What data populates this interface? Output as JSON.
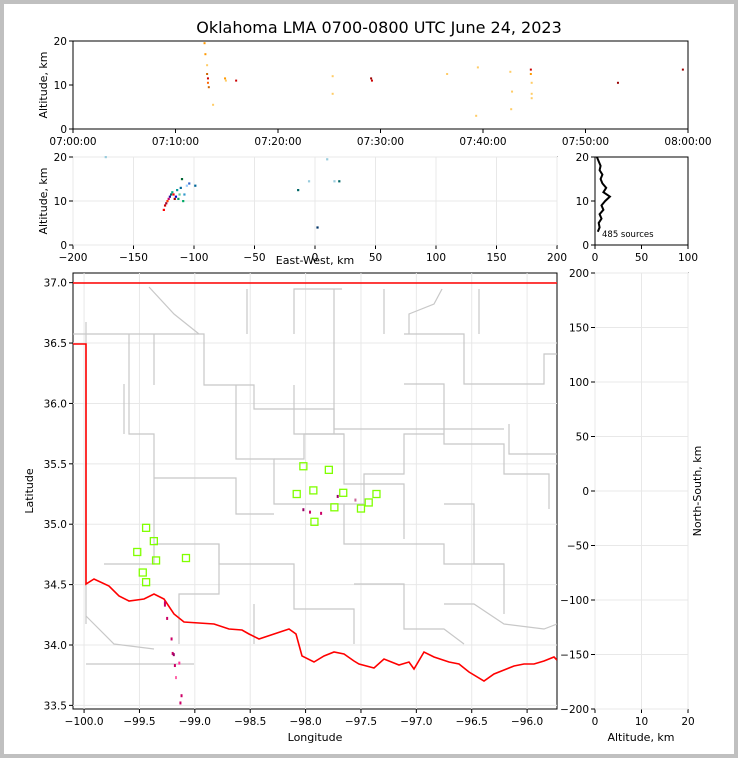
{
  "title": "Oklahoma LMA 0700-0800 UTC June 24, 2023",
  "colors": {
    "frame": "#c0c0c0",
    "state_line": "#ff0000",
    "county_line": "#c8c8c8",
    "station": "#80ff00",
    "grid": "#e8e8e8"
  },
  "chart_data": [
    {
      "id": "time_height",
      "type": "scatter",
      "ylabel": "Altitude, km",
      "ylim": [
        0,
        20
      ],
      "yticks": [
        "0",
        "10",
        "20"
      ],
      "xlim": [
        "07:00:00",
        "08:00:00"
      ],
      "xticks": [
        "07:00:00",
        "07:10:00",
        "07:20:00",
        "07:30:00",
        "07:40:00",
        "07:50:00",
        "08:00:00"
      ],
      "points": [
        {
          "t": "07:12:50",
          "alt": 19.5,
          "color": "#ff9900"
        },
        {
          "t": "07:12:55",
          "alt": 17.0,
          "color": "#ff9900"
        },
        {
          "t": "07:13:05",
          "alt": 14.5,
          "color": "#ffcc66"
        },
        {
          "t": "07:13:05",
          "alt": 12.5,
          "color": "#cc6600"
        },
        {
          "t": "07:13:10",
          "alt": 11.5,
          "color": "#cc0000"
        },
        {
          "t": "07:13:10",
          "alt": 10.5,
          "color": "#ff6600"
        },
        {
          "t": "07:13:15",
          "alt": 9.5,
          "color": "#cc6600"
        },
        {
          "t": "07:13:40",
          "alt": 5.5,
          "color": "#ffcc66"
        },
        {
          "t": "07:14:50",
          "alt": 11.5,
          "color": "#ff9900"
        },
        {
          "t": "07:14:55",
          "alt": 11.0,
          "color": "#ffcc66"
        },
        {
          "t": "07:15:55",
          "alt": 11.0,
          "color": "#cc0000"
        },
        {
          "t": "07:25:20",
          "alt": 12.0,
          "color": "#ffcc66"
        },
        {
          "t": "07:25:20",
          "alt": 8.0,
          "color": "#ffcc66"
        },
        {
          "t": "07:29:05",
          "alt": 11.5,
          "color": "#990000"
        },
        {
          "t": "07:29:10",
          "alt": 11.0,
          "color": "#cc0000"
        },
        {
          "t": "07:36:30",
          "alt": 12.5,
          "color": "#ffcc66"
        },
        {
          "t": "07:39:30",
          "alt": 14.0,
          "color": "#ffcc66"
        },
        {
          "t": "07:39:20",
          "alt": 3.0,
          "color": "#ffcc66"
        },
        {
          "t": "07:42:40",
          "alt": 13.0,
          "color": "#ffcc66"
        },
        {
          "t": "07:42:50",
          "alt": 8.5,
          "color": "#ffcc66"
        },
        {
          "t": "07:42:45",
          "alt": 4.5,
          "color": "#ffcc66"
        },
        {
          "t": "07:44:40",
          "alt": 13.5,
          "color": "#cc0000"
        },
        {
          "t": "07:44:40",
          "alt": 12.5,
          "color": "#ff9900"
        },
        {
          "t": "07:44:45",
          "alt": 10.5,
          "color": "#ffcc66"
        },
        {
          "t": "07:44:45",
          "alt": 8.0,
          "color": "#ffcc66"
        },
        {
          "t": "07:44:45",
          "alt": 7.0,
          "color": "#ffcc66"
        },
        {
          "t": "07:53:10",
          "alt": 10.5,
          "color": "#990000"
        },
        {
          "t": "07:59:30",
          "alt": 13.5,
          "color": "#990000"
        }
      ]
    },
    {
      "id": "ew_height",
      "type": "scatter",
      "xlabel": "East-West, km",
      "ylabel": "Altitude, km",
      "xlim": [
        -200,
        200
      ],
      "ylim": [
        0,
        20
      ],
      "xticks": [
        "−200",
        "−150",
        "−100",
        "−50",
        "0",
        "50",
        "100",
        "150",
        "200"
      ],
      "yticks": [
        "0",
        "10",
        "20"
      ],
      "points": [
        {
          "x": -125,
          "y": 8,
          "color": "#ff0000"
        },
        {
          "x": -124,
          "y": 9,
          "color": "#cc0000"
        },
        {
          "x": -123,
          "y": 9.5,
          "color": "#990033"
        },
        {
          "x": -122,
          "y": 10,
          "color": "#ff3300"
        },
        {
          "x": -121,
          "y": 10.5,
          "color": "#cc0066"
        },
        {
          "x": -120,
          "y": 11,
          "color": "#330099"
        },
        {
          "x": -119,
          "y": 11.5,
          "color": "#006666"
        },
        {
          "x": -118,
          "y": 12,
          "color": "#00aa88"
        },
        {
          "x": -117,
          "y": 11.5,
          "color": "#ff0000"
        },
        {
          "x": -116,
          "y": 10.5,
          "color": "#990000"
        },
        {
          "x": -115,
          "y": 11,
          "color": "#0000cc"
        },
        {
          "x": -114,
          "y": 12.5,
          "color": "#009999"
        },
        {
          "x": -113,
          "y": 10.5,
          "color": "#009966"
        },
        {
          "x": -112,
          "y": 11.5,
          "color": "#66cc99"
        },
        {
          "x": -111,
          "y": 13,
          "color": "#006699"
        },
        {
          "x": -110,
          "y": 15,
          "color": "#006633"
        },
        {
          "x": -109,
          "y": 10,
          "color": "#00aa66"
        },
        {
          "x": -108,
          "y": 11.5,
          "color": "#3399cc"
        },
        {
          "x": -106,
          "y": 13.5,
          "color": "#99ccff"
        },
        {
          "x": -104,
          "y": 14,
          "color": "#3366cc"
        },
        {
          "x": -99,
          "y": 13.5,
          "color": "#006699"
        },
        {
          "x": -14,
          "y": 12.5,
          "color": "#006666"
        },
        {
          "x": -5,
          "y": 14.5,
          "color": "#99ccdd"
        },
        {
          "x": 2,
          "y": 4,
          "color": "#003366"
        },
        {
          "x": 16,
          "y": 14.5,
          "color": "#99ccdd"
        },
        {
          "x": 20,
          "y": 14.5,
          "color": "#006666"
        },
        {
          "x": -173,
          "y": 20,
          "color": "#99ccdd"
        },
        {
          "x": 10,
          "y": 19.5,
          "color": "#99ccdd"
        }
      ]
    },
    {
      "id": "alt_hist",
      "type": "line",
      "xlim": [
        0,
        100
      ],
      "ylim": [
        0,
        20
      ],
      "xticks": [
        "0",
        "50",
        "100"
      ],
      "yticks": [
        "0",
        "10",
        "20"
      ],
      "annotation": "485 sources",
      "profile": [
        {
          "alt": 3,
          "count": 3
        },
        {
          "alt": 4,
          "count": 5
        },
        {
          "alt": 5,
          "count": 4
        },
        {
          "alt": 6,
          "count": 7
        },
        {
          "alt": 7,
          "count": 5
        },
        {
          "alt": 8,
          "count": 9
        },
        {
          "alt": 9,
          "count": 7
        },
        {
          "alt": 10,
          "count": 11
        },
        {
          "alt": 11,
          "count": 16
        },
        {
          "alt": 12,
          "count": 9
        },
        {
          "alt": 13,
          "count": 12
        },
        {
          "alt": 14,
          "count": 8
        },
        {
          "alt": 15,
          "count": 6
        },
        {
          "alt": 16,
          "count": 8
        },
        {
          "alt": 17,
          "count": 5
        },
        {
          "alt": 18,
          "count": 6
        },
        {
          "alt": 19,
          "count": 4
        },
        {
          "alt": 20,
          "count": 2
        }
      ]
    },
    {
      "id": "plan_view",
      "type": "scatter",
      "xlabel": "Longitude",
      "ylabel": "Latitude",
      "xlim": [
        -100.1,
        -95.73
      ],
      "ylim": [
        33.47,
        37.08
      ],
      "xticks": [
        "−100.0",
        "−99.5",
        "−99.0",
        "−98.5",
        "−98.0",
        "−97.5",
        "−97.0",
        "−96.5",
        "−96.0"
      ],
      "yticks": [
        "33.5",
        "34.0",
        "34.5",
        "35.0",
        "35.5",
        "36.0",
        "36.5",
        "37.0"
      ],
      "stations": [
        {
          "lon": -99.44,
          "lat": 34.97
        },
        {
          "lon": -99.37,
          "lat": 34.86
        },
        {
          "lon": -99.52,
          "lat": 34.77
        },
        {
          "lon": -99.35,
          "lat": 34.7
        },
        {
          "lon": -99.47,
          "lat": 34.6
        },
        {
          "lon": -99.44,
          "lat": 34.52
        },
        {
          "lon": -99.08,
          "lat": 34.72
        },
        {
          "lon": -98.02,
          "lat": 35.48
        },
        {
          "lon": -97.79,
          "lat": 35.45
        },
        {
          "lon": -97.93,
          "lat": 35.28
        },
        {
          "lon": -98.08,
          "lat": 35.25
        },
        {
          "lon": -97.66,
          "lat": 35.26
        },
        {
          "lon": -97.36,
          "lat": 35.25
        },
        {
          "lon": -97.43,
          "lat": 35.18
        },
        {
          "lon": -97.74,
          "lat": 35.14
        },
        {
          "lon": -97.5,
          "lat": 35.13
        },
        {
          "lon": -97.92,
          "lat": 35.02
        }
      ],
      "sources": [
        {
          "lon": -99.27,
          "lat": 34.35,
          "color": "#cc0066"
        },
        {
          "lon": -99.27,
          "lat": 34.33,
          "color": "#cc0066"
        },
        {
          "lon": -99.25,
          "lat": 34.22,
          "color": "#cc0066"
        },
        {
          "lon": -99.21,
          "lat": 34.05,
          "color": "#cc0066"
        },
        {
          "lon": -99.2,
          "lat": 33.93,
          "color": "#cc0066"
        },
        {
          "lon": -99.19,
          "lat": 33.92,
          "color": "#990066"
        },
        {
          "lon": -99.18,
          "lat": 33.83,
          "color": "#cc0066"
        },
        {
          "lon": -99.14,
          "lat": 33.85,
          "color": "#ff3399"
        },
        {
          "lon": -99.12,
          "lat": 33.58,
          "color": "#cc0066"
        },
        {
          "lon": -99.13,
          "lat": 33.52,
          "color": "#cc0066"
        },
        {
          "lon": -99.17,
          "lat": 33.73,
          "color": "#ff66aa"
        },
        {
          "lon": -98.02,
          "lat": 35.12,
          "color": "#990066"
        },
        {
          "lon": -97.96,
          "lat": 35.1,
          "color": "#cc0066"
        },
        {
          "lon": -97.86,
          "lat": 35.09,
          "color": "#cc0066"
        },
        {
          "lon": -97.71,
          "lat": 35.23,
          "color": "#990066"
        },
        {
          "lon": -97.55,
          "lat": 35.2,
          "color": "#cc6699"
        }
      ]
    },
    {
      "id": "ns_height",
      "type": "scatter",
      "xlabel": "Altitude, km",
      "ylabel": "North-South, km",
      "xlim": [
        0,
        20
      ],
      "ylim": [
        -200,
        200
      ],
      "xticks": [
        "0",
        "10",
        "20"
      ],
      "yticks": [
        "200",
        "150",
        "100",
        "50",
        "0",
        "−50",
        "−100",
        "−150",
        "−200"
      ],
      "points": []
    }
  ]
}
